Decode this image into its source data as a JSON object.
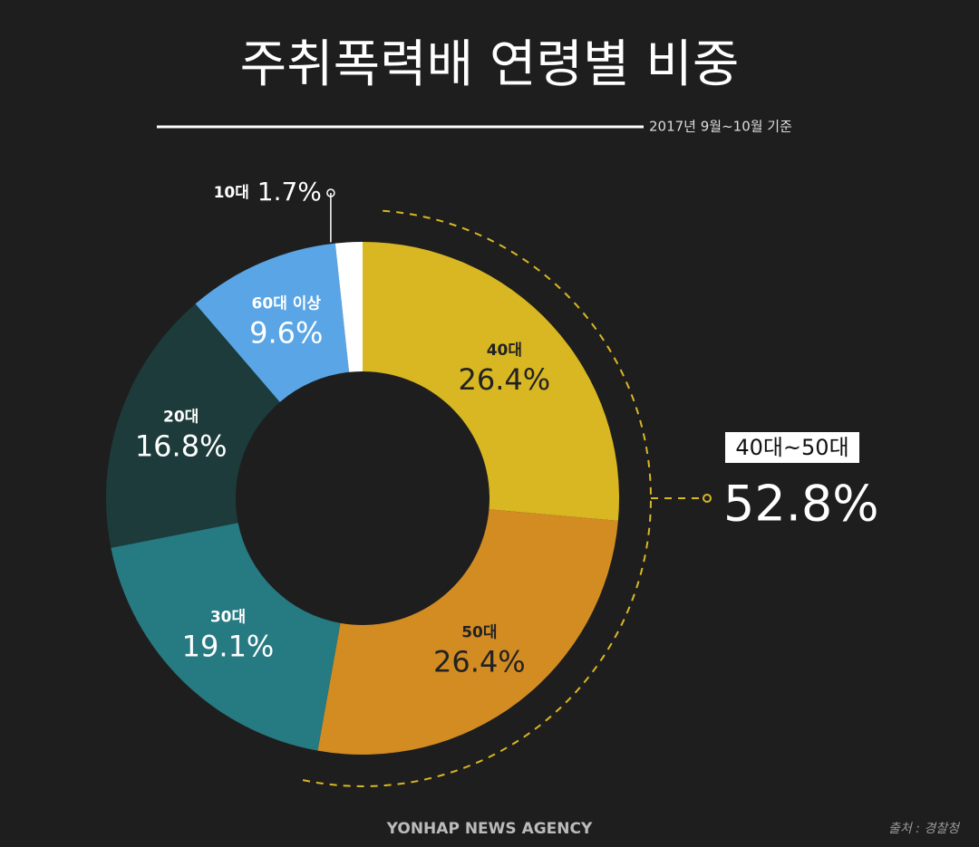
{
  "chart_data": {
    "type": "donut",
    "title": "주취폭력배 연령별 비중",
    "subtitle": "2017년 9월~10월 기준",
    "categories": [
      "40대",
      "50대",
      "30대",
      "20대",
      "60대 이상",
      "10대"
    ],
    "values": [
      26.4,
      26.4,
      19.1,
      16.8,
      9.6,
      1.7
    ],
    "value_labels": [
      "26.4%",
      "26.4%",
      "19.1%",
      "16.8%",
      "9.6%",
      "1.7%"
    ],
    "colors": [
      "#d8b722",
      "#d38c22",
      "#267a82",
      "#1c3b3a",
      "#5aa5e6",
      "#ffffff"
    ],
    "highlight": {
      "label": "40대~50대",
      "text": "52.8%"
    },
    "footer": "YONHAP NEWS AGENCY",
    "source": "출처 : 경찰청"
  }
}
